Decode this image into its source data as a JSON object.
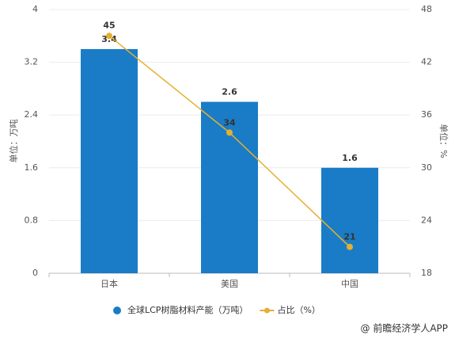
{
  "chart_data": {
    "type": "bar",
    "categories": [
      "日本",
      "美国",
      "中国"
    ],
    "series": [
      {
        "name": "全球LCP树脂材料产能（万吨）",
        "type": "bar",
        "color": "#1a7cc6",
        "values": [
          3.4,
          2.6,
          1.6
        ]
      },
      {
        "name": "占比（%）",
        "type": "line",
        "axis": "y2",
        "color": "#e5b02f",
        "values": [
          45,
          34,
          21
        ]
      }
    ],
    "ylabel": "单位：万吨",
    "y2label": "单位：%",
    "ylim": [
      0,
      4
    ],
    "yticks": [
      0,
      0.8,
      1.6,
      2.4,
      3.2,
      4
    ],
    "y2lim": [
      18,
      48
    ],
    "y2ticks": [
      18,
      24,
      30,
      36,
      42,
      48
    ],
    "grid": true,
    "legend": "bottom"
  },
  "footer": "@ 前瞻经济学人APP"
}
